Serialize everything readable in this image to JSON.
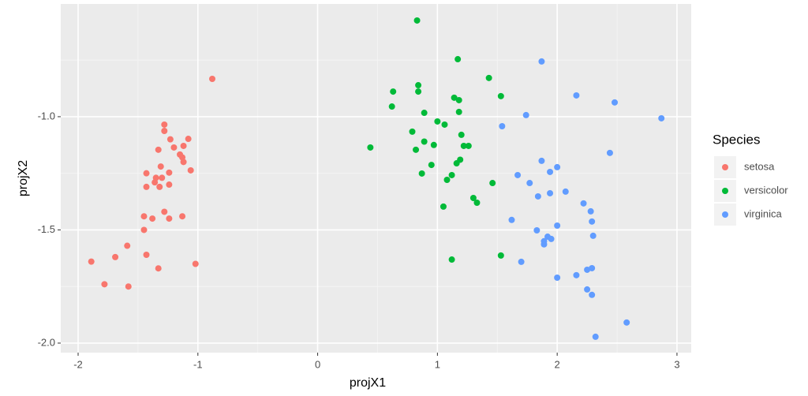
{
  "chart_data": {
    "type": "scatter",
    "x_label": "projX1",
    "y_label": "projX2",
    "legend_title": "Species",
    "legend_position": "right",
    "grid": true,
    "xlim": [
      -2.145,
      3.119
    ],
    "ylim": [
      -2.042,
      -0.502
    ],
    "xticks": [
      -2,
      -1,
      0,
      1,
      2,
      3
    ],
    "yticks": [
      {
        "value": -1.0,
        "label": "-1.0"
      },
      {
        "value": -1.5,
        "label": "-1.5"
      },
      {
        "value": -2.0,
        "label": "-2.0"
      }
    ],
    "x_minor_breaks": [
      -1.5,
      -0.5,
      0.5,
      1.5,
      2.5
    ],
    "y_minor_breaks": [
      -0.75,
      -1.25,
      -1.75
    ],
    "series": [
      {
        "name": "setosa",
        "color": "#f8766d",
        "x": [
          -0.88,
          -1.28,
          -1.28,
          -1.23,
          -1.2,
          -1.08,
          -1.12,
          -1.33,
          -1.15,
          -1.13,
          -1.12,
          -1.31,
          -1.06,
          -1.43,
          -1.35,
          -1.24,
          -1.3,
          -1.36,
          -1.32,
          -1.43,
          -1.24,
          -1.45,
          -1.38,
          -1.28,
          -1.24,
          -1.13,
          -1.45,
          -1.59,
          -1.43,
          -1.69,
          -1.89,
          -1.02,
          -1.33,
          -1.78,
          -1.58
        ],
        "y": [
          -0.833,
          -1.035,
          -1.063,
          -1.1,
          -1.136,
          -1.098,
          -1.129,
          -1.146,
          -1.167,
          -1.18,
          -1.2,
          -1.22,
          -1.237,
          -1.25,
          -1.27,
          -1.247,
          -1.27,
          -1.29,
          -1.31,
          -1.31,
          -1.3,
          -1.44,
          -1.45,
          -1.42,
          -1.45,
          -1.44,
          -1.5,
          -1.57,
          -1.61,
          -1.62,
          -1.64,
          -1.65,
          -1.67,
          -1.74,
          -1.75
        ]
      },
      {
        "name": "versicolor",
        "color": "#00ba38",
        "x": [
          0.83,
          1.17,
          0.84,
          0.84,
          0.63,
          1.43,
          1.14,
          1.18,
          1.53,
          0.62,
          0.89,
          1.18,
          1.0,
          1.06,
          0.79,
          1.2,
          0.89,
          0.97,
          1.22,
          1.26,
          0.44,
          0.82,
          1.19,
          1.16,
          0.95,
          1.12,
          0.87,
          1.08,
          1.46,
          1.3,
          1.33,
          1.05,
          1.53,
          1.12
        ],
        "y": [
          -0.575,
          -0.746,
          -0.861,
          -0.889,
          -0.889,
          -0.829,
          -0.916,
          -0.927,
          -0.909,
          -0.955,
          -0.983,
          -0.979,
          -1.021,
          -1.035,
          -1.066,
          -1.08,
          -1.11,
          -1.125,
          -1.129,
          -1.129,
          -1.136,
          -1.146,
          -1.19,
          -1.206,
          -1.213,
          -1.258,
          -1.251,
          -1.279,
          -1.293,
          -1.359,
          -1.38,
          -1.397,
          -1.613,
          -1.631
        ]
      },
      {
        "name": "virginica",
        "color": "#619cff",
        "x": [
          1.87,
          2.16,
          2.48,
          2.87,
          1.74,
          1.54,
          2.44,
          1.87,
          2.0,
          1.94,
          1.67,
          1.77,
          2.07,
          1.94,
          1.84,
          2.22,
          2.28,
          2.29,
          1.62,
          2.0,
          1.83,
          2.3,
          1.92,
          1.95,
          1.89,
          1.89,
          1.7,
          2.29,
          2.25,
          2.16,
          2.0,
          2.25,
          2.29,
          2.58,
          2.32
        ],
        "y": [
          -0.756,
          -0.906,
          -0.937,
          -1.007,
          -0.993,
          -1.042,
          -1.16,
          -1.195,
          -1.223,
          -1.244,
          -1.258,
          -1.293,
          -1.331,
          -1.338,
          -1.352,
          -1.383,
          -1.418,
          -1.463,
          -1.456,
          -1.481,
          -1.502,
          -1.526,
          -1.53,
          -1.54,
          -1.55,
          -1.564,
          -1.641,
          -1.669,
          -1.676,
          -1.7,
          -1.711,
          -1.763,
          -1.787,
          -1.909,
          -1.972
        ]
      }
    ]
  }
}
